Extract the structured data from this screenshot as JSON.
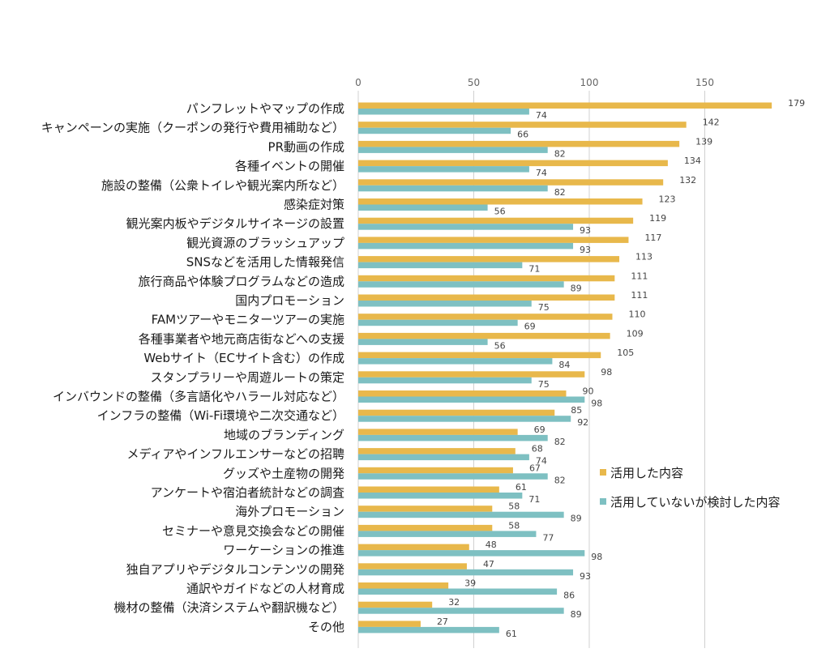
{
  "chart_data": {
    "type": "bar",
    "orientation": "horizontal",
    "title": "",
    "xlabel": "",
    "ylabel": "",
    "xlim": [
      0,
      180
    ],
    "ticks": [
      "0",
      "50",
      "100",
      "150"
    ],
    "tick_values": [
      0,
      50,
      100,
      150
    ],
    "grid": true,
    "legend_position": "right",
    "categories": [
      "パンフレットやマップの作成",
      "キャンペーンの実施（クーポンの発行や費用補助など）",
      "PR動画の作成",
      "各種イベントの開催",
      "施設の整備（公衆トイレや観光案内所など）",
      "感染症対策",
      "観光案内板やデジタルサイネージの設置",
      "観光資源のブラッシュアップ",
      "SNSなどを活用した情報発信",
      "旅行商品や体験プログラムなどの造成",
      "国内プロモーション",
      "FAMツアーやモニターツアーの実施",
      "各種事業者や地元商店街などへの支援",
      "Webサイト（ECサイト含む）の作成",
      "スタンプラリーや周遊ルートの策定",
      "インバウンドの整備（多言語化やハラール対応など）",
      "インフラの整備（Wi-Fi環境や二次交通など）",
      "地域のブランディング",
      "メディアやインフルエンサーなどの招聘",
      "グッズや土産物の開発",
      "アンケートや宿泊者統計などの調査",
      "海外プロモーション",
      "セミナーや意見交換会などの開催",
      "ワーケーションの推進",
      "独自アプリやデジタルコンテンツの開発",
      "通訳やガイドなどの人材育成",
      "機材の整備（決済システムや翻訳機など）",
      "その他"
    ],
    "series": [
      {
        "name": "活用した内容",
        "color": "#E8B84B",
        "values": [
          179,
          142,
          139,
          134,
          132,
          123,
          119,
          117,
          113,
          111,
          111,
          110,
          109,
          105,
          98,
          90,
          85,
          69,
          68,
          67,
          61,
          58,
          58,
          48,
          47,
          39,
          32,
          27
        ]
      },
      {
        "name": "活用していないが検討した内容",
        "color": "#7EC0C2",
        "values": [
          74,
          66,
          82,
          74,
          82,
          56,
          93,
          93,
          71,
          89,
          75,
          69,
          56,
          84,
          75,
          98,
          92,
          82,
          74,
          82,
          71,
          89,
          77,
          98,
          93,
          86,
          89,
          61
        ]
      }
    ]
  }
}
